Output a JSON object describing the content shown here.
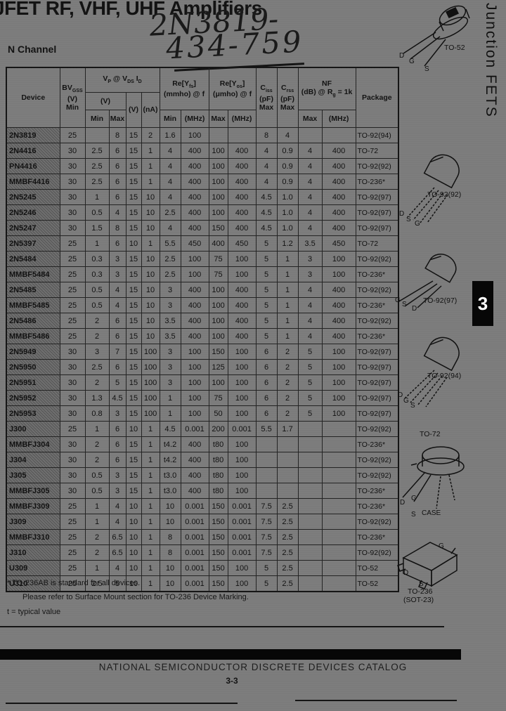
{
  "page": {
    "title": "JFET RF, VHF, UHF Amplifiers",
    "section_label": "N Channel",
    "handwriting": {
      "line1": "2N3819-",
      "line2": "434-759"
    },
    "side_tab_label": "Junction FETS",
    "section_tab_number": "3",
    "footer_text": "NATIONAL SEMICONDUCTOR DISCRETE DEVICES CATALOG",
    "page_number": "3-3",
    "colors": {
      "paper": "#7d7d7d",
      "ink": "#131313",
      "tab_bg": "#070707",
      "tab_fg": "#ffffff"
    }
  },
  "table": {
    "header": {
      "device": "Device",
      "bv": {
        "base": "BV",
        "sub": "GSS",
        "unit": "(V)",
        "limit": "Min"
      },
      "vp": {
        "b1": "V",
        "s1": "P",
        "b2": " @ V",
        "s2": "DS",
        "b3": " I",
        "s3": "D",
        "unit": "(V)",
        "min": "Min",
        "max": "Max",
        "vds_unit": "(V)",
        "id_unit": "(nA)"
      },
      "yfs": {
        "b": "Re[Y",
        "sub": "fs",
        "a": "]",
        "unit": "(mmho) @ f",
        "min": "Min",
        "mhz": "(MHz)"
      },
      "yos": {
        "b": "Re[Y",
        "sub": "os",
        "a": "]",
        "unit": "(μmho) @ f",
        "max": "Max",
        "mhz": "(MHz)"
      },
      "ciss": {
        "base": "C",
        "sub": "iss",
        "unit": "(pF)",
        "limit": "Max"
      },
      "crss": {
        "base": "C",
        "sub": "rss",
        "unit": "(pF)",
        "limit": "Max"
      },
      "nf": {
        "l1": "NF",
        "l2a": "(dB) @ R",
        "l2sub": "g",
        "l2b": " = 1k",
        "max": "Max",
        "mhz": "(MHz)"
      },
      "package": "Package"
    },
    "rows": [
      [
        "2N3819",
        "25",
        "",
        "8",
        "15",
        "2",
        "1.6",
        "100",
        "",
        "",
        "8",
        "4",
        "",
        "",
        "TO-92(94)"
      ],
      [
        "2N4416",
        "30",
        "2.5",
        "6",
        "15",
        "1",
        "4",
        "400",
        "100",
        "400",
        "4",
        "0.9",
        "4",
        "400",
        "TO-72"
      ],
      [
        "PN4416",
        "30",
        "2.5",
        "6",
        "15",
        "1",
        "4",
        "400",
        "100",
        "400",
        "4",
        "0.9",
        "4",
        "400",
        "TO-92(92)"
      ],
      [
        "MMBF4416",
        "30",
        "2.5",
        "6",
        "15",
        "1",
        "4",
        "400",
        "100",
        "400",
        "4",
        "0.9",
        "4",
        "400",
        "TO-236*"
      ],
      [
        "2N5245",
        "30",
        "1",
        "6",
        "15",
        "10",
        "4",
        "400",
        "100",
        "400",
        "4.5",
        "1.0",
        "4",
        "400",
        "TO-92(97)"
      ],
      [
        "2N5246",
        "30",
        "0.5",
        "4",
        "15",
        "10",
        "2.5",
        "400",
        "100",
        "400",
        "4.5",
        "1.0",
        "4",
        "400",
        "TO-92(97)"
      ],
      [
        "2N5247",
        "30",
        "1.5",
        "8",
        "15",
        "10",
        "4",
        "400",
        "150",
        "400",
        "4.5",
        "1.0",
        "4",
        "400",
        "TO-92(97)"
      ],
      [
        "2N5397",
        "25",
        "1",
        "6",
        "10",
        "1",
        "5.5",
        "450",
        "400",
        "450",
        "5",
        "1.2",
        "3.5",
        "450",
        "TO-72"
      ],
      [
        "2N5484",
        "25",
        "0.3",
        "3",
        "15",
        "10",
        "2.5",
        "100",
        "75",
        "100",
        "5",
        "1",
        "3",
        "100",
        "TO-92(92)"
      ],
      [
        "MMBF5484",
        "25",
        "0.3",
        "3",
        "15",
        "10",
        "2.5",
        "100",
        "75",
        "100",
        "5",
        "1",
        "3",
        "100",
        "TO-236*"
      ],
      [
        "2N5485",
        "25",
        "0.5",
        "4",
        "15",
        "10",
        "3",
        "400",
        "100",
        "400",
        "5",
        "1",
        "4",
        "400",
        "TO-92(92)"
      ],
      [
        "MMBF5485",
        "25",
        "0.5",
        "4",
        "15",
        "10",
        "3",
        "400",
        "100",
        "400",
        "5",
        "1",
        "4",
        "400",
        "TO-236*"
      ],
      [
        "2N5486",
        "25",
        "2",
        "6",
        "15",
        "10",
        "3.5",
        "400",
        "100",
        "400",
        "5",
        "1",
        "4",
        "400",
        "TO-92(92)"
      ],
      [
        "MMBF5486",
        "25",
        "2",
        "6",
        "15",
        "10",
        "3.5",
        "400",
        "100",
        "400",
        "5",
        "1",
        "4",
        "400",
        "TO-236*"
      ],
      [
        "2N5949",
        "30",
        "3",
        "7",
        "15",
        "100",
        "3",
        "100",
        "150",
        "100",
        "6",
        "2",
        "5",
        "100",
        "TO-92(97)"
      ],
      [
        "2N5950",
        "30",
        "2.5",
        "6",
        "15",
        "100",
        "3",
        "100",
        "125",
        "100",
        "6",
        "2",
        "5",
        "100",
        "TO-92(97)"
      ],
      [
        "2N5951",
        "30",
        "2",
        "5",
        "15",
        "100",
        "3",
        "100",
        "100",
        "100",
        "6",
        "2",
        "5",
        "100",
        "TO-92(97)"
      ],
      [
        "2N5952",
        "30",
        "1.3",
        "4.5",
        "15",
        "100",
        "1",
        "100",
        "75",
        "100",
        "6",
        "2",
        "5",
        "100",
        "TO-92(97)"
      ],
      [
        "2N5953",
        "30",
        "0.8",
        "3",
        "15",
        "100",
        "1",
        "100",
        "50",
        "100",
        "6",
        "2",
        "5",
        "100",
        "TO-92(97)"
      ],
      [
        "J300",
        "25",
        "1",
        "6",
        "10",
        "1",
        "4.5",
        "0.001",
        "200",
        "0.001",
        "5.5",
        "1.7",
        "",
        "",
        "TO-92(92)"
      ],
      [
        "MMBFJ304",
        "30",
        "2",
        "6",
        "15",
        "1",
        "t4.2",
        "400",
        "t80",
        "100",
        "",
        "",
        "",
        "",
        "TO-236*"
      ],
      [
        "J304",
        "30",
        "2",
        "6",
        "15",
        "1",
        "t4.2",
        "400",
        "t80",
        "100",
        "",
        "",
        "",
        "",
        "TO-92(92)"
      ],
      [
        "J305",
        "30",
        "0.5",
        "3",
        "15",
        "1",
        "t3.0",
        "400",
        "t80",
        "100",
        "",
        "",
        "",
        "",
        "TO-92(92)"
      ],
      [
        "MMBFJ305",
        "30",
        "0.5",
        "3",
        "15",
        "1",
        "t3.0",
        "400",
        "t80",
        "100",
        "",
        "",
        "",
        "",
        "TO-236*"
      ],
      [
        "MMBFJ309",
        "25",
        "1",
        "4",
        "10",
        "1",
        "10",
        "0.001",
        "150",
        "0.001",
        "7.5",
        "2.5",
        "",
        "",
        "TO-236*"
      ],
      [
        "J309",
        "25",
        "1",
        "4",
        "10",
        "1",
        "10",
        "0.001",
        "150",
        "0.001",
        "7.5",
        "2.5",
        "",
        "",
        "TO-92(92)"
      ],
      [
        "MMBFJ310",
        "25",
        "2",
        "6.5",
        "10",
        "1",
        "8",
        "0.001",
        "150",
        "0.001",
        "7.5",
        "2.5",
        "",
        "",
        "TO-236*"
      ],
      [
        "J310",
        "25",
        "2",
        "6.5",
        "10",
        "1",
        "8",
        "0.001",
        "150",
        "0.001",
        "7.5",
        "2.5",
        "",
        "",
        "TO-92(92)"
      ],
      [
        "U309",
        "25",
        "1",
        "4",
        "10",
        "1",
        "10",
        "0.001",
        "150",
        "100",
        "5",
        "2.5",
        "",
        "",
        "TO-52"
      ],
      [
        "U310",
        "25",
        "2.5",
        "5",
        "10",
        "1",
        "10",
        "0.001",
        "150",
        "100",
        "5",
        "2.5",
        "",
        "",
        "TO-52"
      ]
    ]
  },
  "footnotes": [
    "* TO-236AB is standard for all devices.",
    "Please refer to Surface Mount section for TO-236 Device Marking.",
    "t = typical value"
  ],
  "packages": [
    {
      "label": "TO-52",
      "pins": [
        "D",
        "G",
        "S"
      ]
    },
    {
      "label": "TO-92(92)",
      "pins": [
        "D",
        "S",
        "G"
      ]
    },
    {
      "label": "TO-92(97)",
      "pins": [
        "G",
        "S",
        "D"
      ]
    },
    {
      "label": "TO-92(94)",
      "pins": [
        "D",
        "G",
        "S"
      ]
    },
    {
      "label": "TO-72",
      "pins": [
        "D",
        "G",
        "S",
        "CASE"
      ]
    },
    {
      "label": "TO-236",
      "sublabel": "(SOT-23)",
      "pins": [
        "G",
        "D",
        "S"
      ]
    }
  ]
}
